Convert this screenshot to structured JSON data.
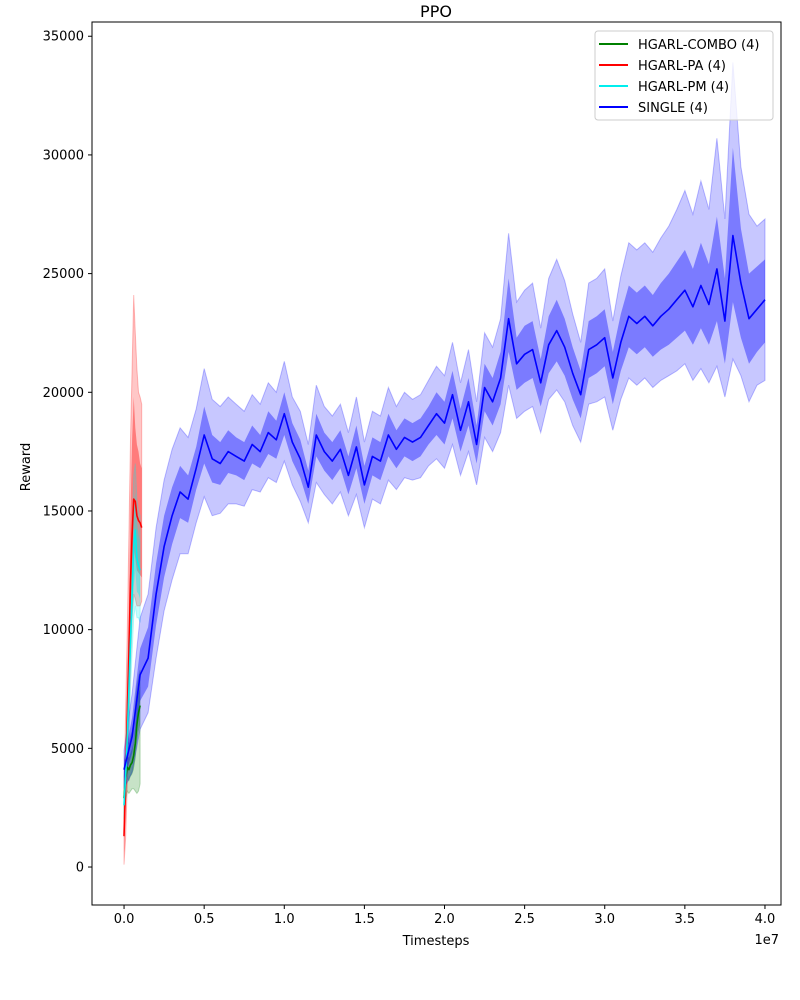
{
  "chart_data": {
    "type": "line",
    "title": "PPO",
    "xlabel": "Timesteps",
    "ylabel": "Reward",
    "x_offset_label": "1e7",
    "xlim": [
      -2000000,
      41000000
    ],
    "ylim": [
      -1600,
      35600
    ],
    "x_ticks": [
      0,
      5000000,
      10000000,
      15000000,
      20000000,
      25000000,
      30000000,
      35000000,
      40000000
    ],
    "x_tick_labels": [
      "0.0",
      "0.5",
      "1.0",
      "1.5",
      "2.0",
      "2.5",
      "3.0",
      "3.5",
      "4.0"
    ],
    "y_ticks": [
      0,
      5000,
      10000,
      15000,
      20000,
      25000,
      30000,
      35000
    ],
    "y_tick_labels": [
      "0",
      "5000",
      "10000",
      "15000",
      "20000",
      "25000",
      "30000",
      "35000"
    ],
    "legend_position": "top-right",
    "series": [
      {
        "name": "HGARL-COMBO (4)",
        "color": "#008000",
        "x": [
          0,
          100000,
          200000,
          300000,
          400000,
          500000,
          600000,
          700000,
          800000,
          900000,
          1000000
        ],
        "y": [
          2900,
          3700,
          4200,
          4100,
          4300,
          4400,
          4700,
          5200,
          6000,
          6500,
          6800
        ],
        "band_inner_low": [
          2500,
          3200,
          3700,
          3600,
          3800,
          3900,
          4100,
          4500,
          5200,
          5700,
          6000
        ],
        "band_inner_high": [
          3300,
          4200,
          4700,
          4600,
          4800,
          5000,
          5300,
          5900,
          6800,
          7300,
          7600
        ],
        "band_outer_low": [
          2000,
          2800,
          3200,
          3100,
          3200,
          3300,
          3300,
          3200,
          3100,
          3200,
          3500
        ],
        "band_outer_high": [
          3800,
          4700,
          5300,
          5200,
          5500,
          5700,
          6100,
          6800,
          7600,
          8000,
          8300
        ]
      },
      {
        "name": "HGARL-PA (4)",
        "color": "#ff0000",
        "x": [
          0,
          100000,
          200000,
          300000,
          400000,
          500000,
          600000,
          700000,
          800000,
          900000,
          1000000,
          1100000
        ],
        "y": [
          1300,
          3500,
          6500,
          9000,
          12000,
          14000,
          15500,
          15400,
          14800,
          14600,
          14500,
          14300
        ],
        "band_inner_low": [
          600,
          2500,
          5200,
          7800,
          10500,
          12500,
          13500,
          13000,
          12500,
          12400,
          12300,
          12200
        ],
        "band_inner_high": [
          2200,
          4800,
          8000,
          11000,
          15000,
          18000,
          19800,
          18500,
          17800,
          17500,
          17000,
          16800
        ],
        "band_outer_low": [
          100,
          1200,
          3500,
          6000,
          8500,
          10500,
          11500,
          11300,
          11000,
          11000,
          11000,
          11200
        ],
        "band_outer_high": [
          3000,
          6500,
          10000,
          14000,
          18000,
          21000,
          24100,
          22500,
          21000,
          20000,
          19800,
          19500
        ]
      },
      {
        "name": "HGARL-PM (4)",
        "color": "#00eeee",
        "x": [
          0,
          100000,
          200000,
          300000,
          400000,
          500000,
          600000,
          700000,
          800000,
          900000,
          1000000
        ],
        "y": [
          2600,
          3800,
          5500,
          7500,
          9500,
          11500,
          13500,
          14200,
          13000,
          12700,
          12500
        ],
        "band_inner_low": [
          2300,
          3300,
          4800,
          6500,
          8500,
          10200,
          11800,
          12500,
          11600,
          11500,
          11300
        ],
        "band_inner_high": [
          2900,
          4300,
          6200,
          8500,
          10500,
          12800,
          15000,
          15800,
          14500,
          14000,
          13700
        ],
        "band_outer_low": [
          2000,
          2900,
          4000,
          5500,
          7500,
          9000,
          10500,
          11000,
          10500,
          10500,
          10300
        ],
        "band_outer_high": [
          3200,
          4800,
          7000,
          9500,
          11800,
          14000,
          16500,
          17000,
          15500,
          15000,
          14800
        ]
      },
      {
        "name": "SINGLE (4)",
        "color": "#0000ff",
        "x": [
          0,
          500000,
          1000000,
          1500000,
          2000000,
          2500000,
          3000000,
          3500000,
          4000000,
          4500000,
          5000000,
          5500000,
          6000000,
          6500000,
          7000000,
          7500000,
          8000000,
          8500000,
          9000000,
          9500000,
          10000000,
          10500000,
          11000000,
          11500000,
          12000000,
          12500000,
          13000000,
          13500000,
          14000000,
          14500000,
          15000000,
          15500000,
          16000000,
          16500000,
          17000000,
          17500000,
          18000000,
          18500000,
          19000000,
          19500000,
          20000000,
          20500000,
          21000000,
          21500000,
          22000000,
          22500000,
          23000000,
          23500000,
          24000000,
          24500000,
          25000000,
          25500000,
          26000000,
          26500000,
          27000000,
          27500000,
          28000000,
          28500000,
          29000000,
          29500000,
          30000000,
          30500000,
          31000000,
          31500000,
          32000000,
          32500000,
          33000000,
          33500000,
          34000000,
          34500000,
          35000000,
          35500000,
          36000000,
          36500000,
          37000000,
          37500000,
          38000000,
          38500000,
          39000000,
          39500000,
          40000000
        ],
        "y": [
          4100,
          5500,
          8100,
          8800,
          11500,
          13500,
          14800,
          15800,
          15500,
          16800,
          18200,
          17200,
          17000,
          17500,
          17300,
          17100,
          17800,
          17500,
          18300,
          18000,
          19100,
          17900,
          17200,
          16000,
          18200,
          17500,
          17100,
          17600,
          16500,
          17700,
          16100,
          17300,
          17100,
          18200,
          17600,
          18100,
          17900,
          18100,
          18600,
          19100,
          18700,
          19900,
          18400,
          19600,
          17800,
          20200,
          19600,
          20600,
          23100,
          21200,
          21600,
          21800,
          20400,
          22000,
          22600,
          21900,
          20800,
          19900,
          21800,
          22000,
          22300,
          20600,
          22100,
          23200,
          22900,
          23200,
          22800,
          23200,
          23500,
          23900,
          24300,
          23600,
          24500,
          23700,
          25200,
          23000,
          26600,
          24600,
          23100,
          23500,
          23900
        ],
        "band_inner_low": [
          3700,
          4800,
          7000,
          7600,
          10200,
          12200,
          13600,
          14700,
          14500,
          15900,
          17000,
          16200,
          16100,
          16600,
          16500,
          16300,
          17000,
          16800,
          17400,
          17200,
          18200,
          17100,
          16400,
          15300,
          17300,
          16700,
          16300,
          16800,
          15700,
          16800,
          15300,
          16500,
          16300,
          17300,
          16800,
          17300,
          17100,
          17300,
          17800,
          18200,
          17800,
          18900,
          17500,
          18600,
          17000,
          19200,
          18600,
          19500,
          21700,
          20100,
          20400,
          20600,
          19400,
          20800,
          21300,
          20700,
          19700,
          18900,
          20600,
          20800,
          21100,
          19500,
          20900,
          21900,
          21600,
          21900,
          21500,
          21800,
          22000,
          22300,
          22600,
          22000,
          22700,
          22000,
          23000,
          21200,
          23800,
          22300,
          21200,
          21700,
          22100
        ],
        "band_inner_high": [
          4500,
          6300,
          9200,
          10100,
          12800,
          14800,
          16000,
          16900,
          16500,
          17700,
          19400,
          18200,
          17900,
          18400,
          18100,
          17900,
          18600,
          18200,
          19200,
          18800,
          20000,
          18700,
          18000,
          16700,
          19100,
          18300,
          17900,
          18400,
          17300,
          18600,
          16900,
          18100,
          17900,
          19100,
          18400,
          18900,
          18700,
          18900,
          19400,
          20000,
          19600,
          20900,
          19300,
          20600,
          18600,
          21200,
          20600,
          21700,
          24800,
          22300,
          22800,
          23000,
          21400,
          23200,
          23900,
          23100,
          21900,
          20900,
          23000,
          23200,
          23500,
          21700,
          23300,
          24500,
          24200,
          24500,
          24100,
          24600,
          25000,
          25500,
          26000,
          25200,
          26300,
          25400,
          27400,
          24800,
          30300,
          26900,
          25000,
          25300,
          25600
        ],
        "band_outer_low": [
          3300,
          4000,
          5800,
          6500,
          8800,
          10800,
          12100,
          13200,
          13200,
          14500,
          15600,
          14800,
          14900,
          15300,
          15300,
          15200,
          15900,
          15800,
          16400,
          16200,
          17100,
          16100,
          15400,
          14500,
          16200,
          15700,
          15300,
          15800,
          14800,
          15700,
          14300,
          15500,
          15300,
          16300,
          15900,
          16400,
          16300,
          16400,
          16900,
          17200,
          16800,
          17800,
          16500,
          17500,
          16100,
          18100,
          17500,
          18300,
          20300,
          18900,
          19200,
          19400,
          18300,
          19700,
          20100,
          19600,
          18600,
          17900,
          19500,
          19600,
          19800,
          18400,
          19700,
          20600,
          20300,
          20600,
          20200,
          20500,
          20700,
          20900,
          21200,
          20500,
          21000,
          20400,
          21100,
          19800,
          21400,
          20700,
          19600,
          20300,
          20500
        ],
        "band_outer_high": [
          4900,
          7300,
          10500,
          11500,
          14300,
          16300,
          17600,
          18500,
          18100,
          19300,
          21000,
          19700,
          19400,
          19800,
          19500,
          19200,
          19900,
          19500,
          20400,
          20000,
          21300,
          19800,
          19200,
          17800,
          20300,
          19400,
          19000,
          19500,
          18300,
          19800,
          17900,
          19200,
          19000,
          20200,
          19400,
          20000,
          19700,
          19900,
          20500,
          21100,
          20700,
          22100,
          20400,
          21800,
          19600,
          22500,
          21900,
          23100,
          26700,
          23800,
          24300,
          24600,
          22700,
          24800,
          25600,
          24700,
          23300,
          22100,
          24600,
          24800,
          25200,
          23000,
          24900,
          26300,
          26000,
          26300,
          25900,
          26500,
          27000,
          27700,
          28500,
          27500,
          28900,
          27700,
          30700,
          27300,
          33900,
          29500,
          27500,
          27000,
          27300
        ]
      }
    ]
  }
}
